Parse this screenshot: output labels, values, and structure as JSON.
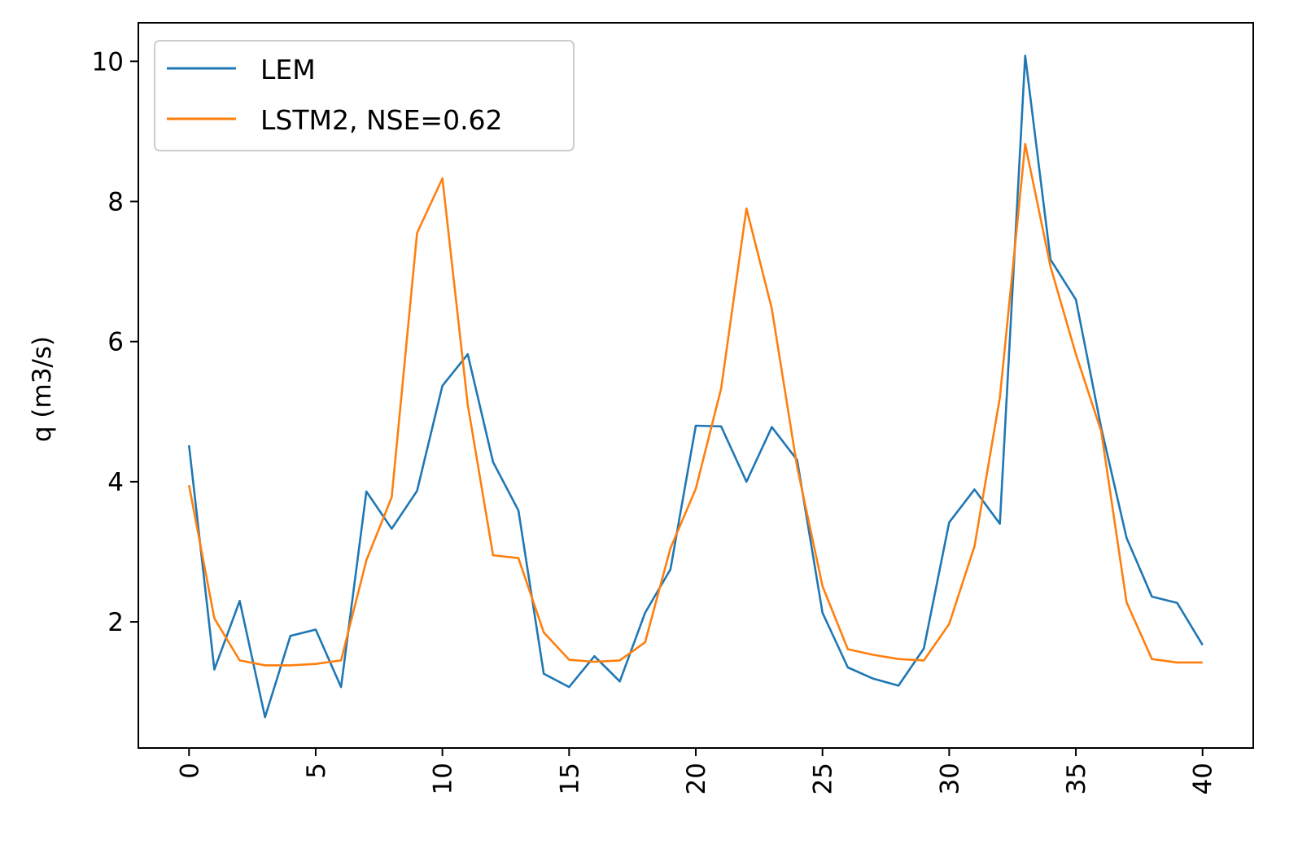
{
  "chart_data": {
    "type": "line",
    "title": "",
    "xlabel": "",
    "ylabel": "q (m3/s)",
    "xlim": [
      -2,
      42
    ],
    "ylim": [
      0.2,
      10.55
    ],
    "xticks": [
      0,
      5,
      10,
      15,
      20,
      25,
      30,
      35,
      40
    ],
    "yticks": [
      2,
      4,
      6,
      8,
      10
    ],
    "grid": false,
    "legend_position": "upper left",
    "x": [
      0,
      1,
      2,
      3,
      4,
      5,
      6,
      7,
      8,
      9,
      10,
      11,
      12,
      13,
      14,
      15,
      16,
      17,
      18,
      19,
      20,
      21,
      22,
      23,
      24,
      25,
      26,
      27,
      28,
      29,
      30,
      31,
      32,
      33,
      34,
      35,
      36,
      37,
      38,
      39,
      40
    ],
    "series": [
      {
        "name": "LEM",
        "color": "#1f77b4",
        "values": [
          4.52,
          1.32,
          2.3,
          0.64,
          1.8,
          1.89,
          1.07,
          3.86,
          3.33,
          3.87,
          5.37,
          5.82,
          4.28,
          3.59,
          1.26,
          1.07,
          1.51,
          1.15,
          2.13,
          2.75,
          4.8,
          4.79,
          4.0,
          4.78,
          4.31,
          2.13,
          1.35,
          1.19,
          1.09,
          1.62,
          3.42,
          3.89,
          3.4,
          10.08,
          7.17,
          6.6,
          4.77,
          3.2,
          2.36,
          2.27,
          1.67
        ]
      },
      {
        "name": "LSTM2, NSE=0.62",
        "color": "#ff7f0e",
        "values": [
          3.95,
          2.05,
          1.45,
          1.38,
          1.38,
          1.4,
          1.45,
          2.88,
          3.78,
          7.55,
          8.33,
          5.1,
          2.95,
          2.91,
          1.85,
          1.46,
          1.43,
          1.45,
          1.71,
          3.05,
          3.9,
          5.33,
          7.9,
          6.47,
          4.21,
          2.51,
          1.61,
          1.53,
          1.47,
          1.45,
          1.97,
          3.08,
          5.2,
          8.82,
          7.07,
          5.82,
          4.72,
          2.28,
          1.47,
          1.42,
          1.42
        ]
      }
    ]
  }
}
